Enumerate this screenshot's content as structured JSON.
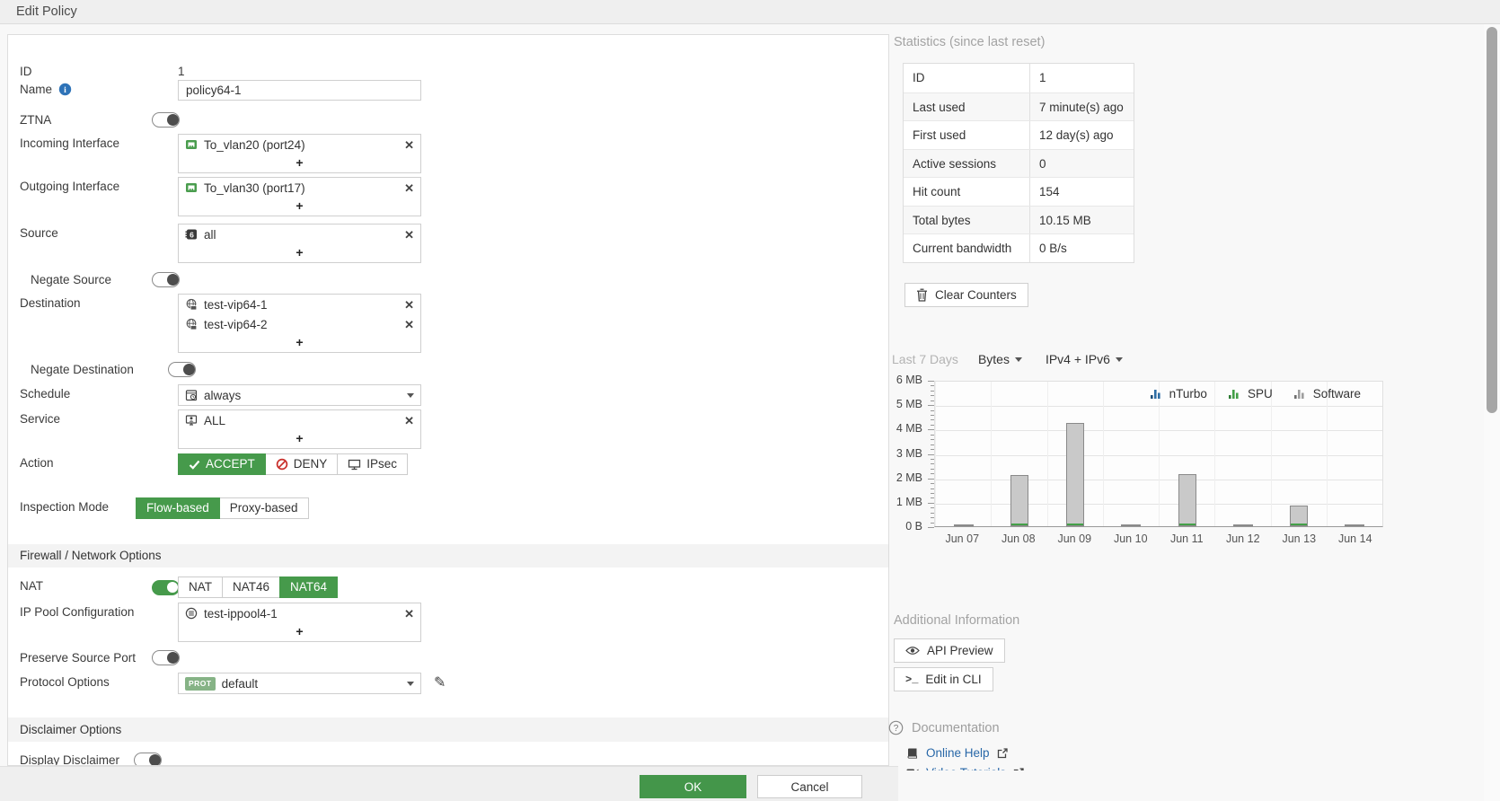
{
  "window": {
    "title": "Edit Policy"
  },
  "form": {
    "id": {
      "label": "ID",
      "value": "1"
    },
    "name": {
      "label": "Name",
      "value": "policy64-1"
    },
    "ztna": {
      "label": "ZTNA",
      "state": "off"
    },
    "incoming_interface": {
      "label": "Incoming Interface",
      "add_label": "+",
      "entries": [
        {
          "text": "To_vlan20 (port24)"
        }
      ]
    },
    "outgoing_interface": {
      "label": "Outgoing Interface",
      "add_label": "+",
      "entries": [
        {
          "text": "To_vlan30 (port17)"
        }
      ]
    },
    "source": {
      "label": "Source",
      "add_label": "+",
      "entries": [
        {
          "text": "all"
        }
      ]
    },
    "negate_source": {
      "label": "Negate Source",
      "state": "off"
    },
    "destination": {
      "label": "Destination",
      "add_label": "+",
      "entries": [
        {
          "text": "test-vip64-1"
        },
        {
          "text": "test-vip64-2"
        }
      ]
    },
    "negate_destination": {
      "label": "Negate Destination",
      "state": "off"
    },
    "schedule": {
      "label": "Schedule",
      "value": "always"
    },
    "service": {
      "label": "Service",
      "add_label": "+",
      "entries": [
        {
          "text": "ALL"
        }
      ]
    },
    "action": {
      "label": "Action",
      "options": [
        "ACCEPT",
        "DENY",
        "IPsec"
      ],
      "selected": "ACCEPT"
    },
    "inspection_mode": {
      "label": "Inspection Mode",
      "options": [
        "Flow-based",
        "Proxy-based"
      ],
      "selected": "Flow-based"
    },
    "sections": {
      "firewall": "Firewall / Network Options",
      "disclaimer": "Disclaimer Options"
    },
    "nat": {
      "label": "NAT",
      "state": "on",
      "options": [
        "NAT",
        "NAT46",
        "NAT64"
      ],
      "selected": "NAT64"
    },
    "ip_pool": {
      "label": "IP Pool Configuration",
      "add_label": "+",
      "entries": [
        {
          "text": "test-ippool4-1"
        }
      ]
    },
    "preserve_source_port": {
      "label": "Preserve Source Port",
      "state": "off"
    },
    "protocol_options": {
      "label": "Protocol Options",
      "badge": "PROT",
      "value": "default"
    },
    "display_disclaimer": {
      "label": "Display Disclaimer",
      "state": "off"
    }
  },
  "footer": {
    "ok_label": "OK",
    "cancel_label": "Cancel"
  },
  "statistics": {
    "title": "Statistics (since last reset)",
    "rows": [
      {
        "label": "ID",
        "value": "1"
      },
      {
        "label": "Last used",
        "value": "7 minute(s) ago"
      },
      {
        "label": "First used",
        "value": "12 day(s) ago"
      },
      {
        "label": "Active sessions",
        "value": "0"
      },
      {
        "label": "Hit count",
        "value": "154"
      },
      {
        "label": "Total bytes",
        "value": "10.15 MB"
      },
      {
        "label": "Current bandwidth",
        "value": "0 B/s"
      }
    ],
    "clear_button_label": "Clear Counters"
  },
  "traffic": {
    "period_label": "Last 7 Days",
    "unit_dropdown": "Bytes",
    "version_dropdown": "IPv4 + IPv6"
  },
  "chart_data": {
    "type": "bar",
    "stacked": true,
    "title": "Last 7 Days",
    "unit": "Bytes",
    "categories": [
      "Jun 07",
      "Jun 08",
      "Jun 09",
      "Jun 10",
      "Jun 11",
      "Jun 12",
      "Jun 13",
      "Jun 14"
    ],
    "series": [
      {
        "name": "nTurbo",
        "color": "#2e6da4",
        "values_mb": [
          0,
          0,
          0,
          0,
          0,
          0,
          0,
          0
        ]
      },
      {
        "name": "SPU",
        "color": "#43a047",
        "values_mb": [
          0.02,
          0.04,
          0.05,
          0.02,
          0.04,
          0.02,
          0.03,
          0.02
        ]
      },
      {
        "name": "Software",
        "color": "#c9c9c9",
        "values_mb": [
          0.02,
          2.05,
          4.2,
          0.02,
          2.1,
          0.02,
          0.8,
          0.02
        ]
      }
    ],
    "y_ticks": [
      "6 MB",
      "5 MB",
      "4 MB",
      "3 MB",
      "2 MB",
      "1 MB",
      "0 B"
    ],
    "ylim_mb": [
      0,
      6
    ],
    "legend": [
      "nTurbo",
      "SPU",
      "Software"
    ],
    "legend_position": "top-right",
    "grid": true
  },
  "additional": {
    "title": "Additional Information",
    "api_preview_label": "API Preview",
    "edit_cli_label": "Edit in CLI"
  },
  "documentation": {
    "title": "Documentation",
    "links": [
      {
        "label": "Online Help"
      },
      {
        "label": "Video Tutorials"
      }
    ]
  },
  "colors": {
    "accent_green": "#469a4b",
    "ok_green": "#44964a",
    "deny_red": "#c9302c",
    "link_blue": "#2867a8",
    "nturbo_blue": "#2e6da4",
    "spu_green": "#43a047",
    "software_gray": "#9e9e9e",
    "bar_fill": "#c9c9c9",
    "prot_badge_green": "#86b386"
  }
}
